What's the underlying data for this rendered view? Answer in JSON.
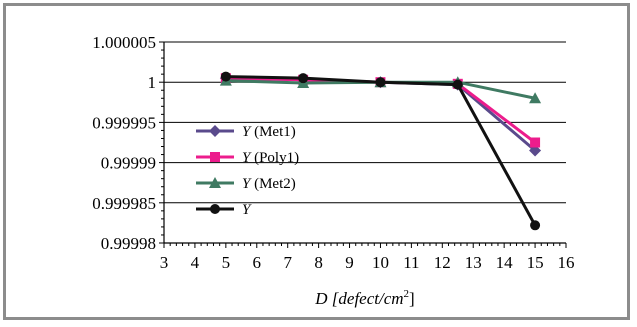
{
  "chart_data": {
    "type": "line",
    "title": "",
    "xlabel_main": "D [defect/cm",
    "xlabel_exp": "2",
    "xlabel_close": "]",
    "ylabel": "",
    "xlim": [
      3,
      16
    ],
    "ylim": [
      0.99998,
      1.000005
    ],
    "x_ticks": [
      3,
      4,
      5,
      6,
      7,
      8,
      9,
      10,
      11,
      12,
      13,
      14,
      15,
      16
    ],
    "y_ticks": [
      0.99998,
      0.999985,
      0.99999,
      0.999995,
      1,
      1.000005
    ],
    "y_tick_labels": [
      "0.99998",
      "0.999985",
      "0.99999",
      "0.999995",
      "1",
      "1.000005"
    ],
    "grid": "horizontal",
    "legend_position": "left",
    "x": [
      5,
      7.5,
      10,
      12.5,
      15
    ],
    "series": [
      {
        "name_italic": "Y",
        "name_rest": " (Met1)",
        "color": "#5a4a8c",
        "marker": "diamond",
        "values": [
          1.0000005,
          1.0000003,
          1.0,
          0.9999997,
          0.9999915
        ]
      },
      {
        "name_italic": "Y",
        "name_rest": " (Poly1)",
        "color": "#ec1c8c",
        "marker": "square",
        "values": [
          1.0000005,
          1.0000003,
          1.0,
          0.9999998,
          0.9999925
        ]
      },
      {
        "name_italic": "Y",
        "name_rest": " (Met2)",
        "color": "#3f7a62",
        "marker": "triangle",
        "values": [
          1.0000002,
          0.9999999,
          1.0,
          1.0,
          0.999998
        ]
      },
      {
        "name_italic": "Y",
        "name_rest": "",
        "color": "#111111",
        "marker": "circle",
        "values": [
          1.0000007,
          1.0000005,
          1.0,
          0.9999997,
          0.9999822
        ]
      }
    ]
  }
}
